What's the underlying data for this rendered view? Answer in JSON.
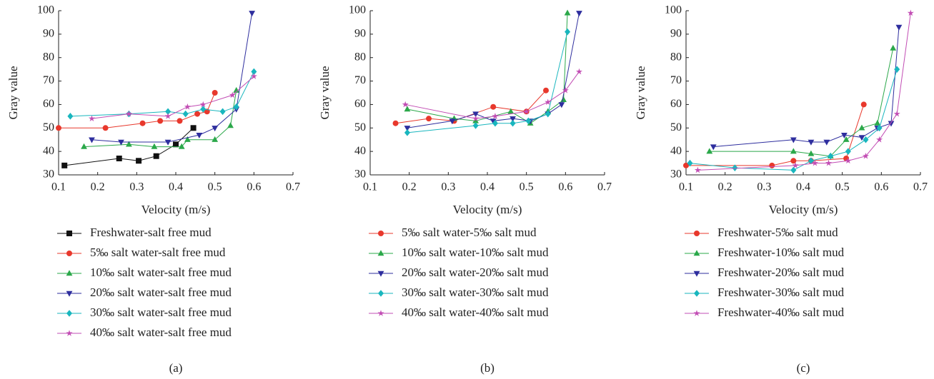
{
  "chart_data": [
    {
      "type": "line",
      "caption": "(a)",
      "x_label": "Velocity (m/s)",
      "y_label": "Gray value",
      "xlim": [
        0.1,
        0.7
      ],
      "xticks": [
        0.1,
        0.2,
        0.3,
        0.4,
        0.5,
        0.6,
        0.7
      ],
      "ylim": [
        30,
        100
      ],
      "yticks": [
        30,
        40,
        50,
        60,
        70,
        80,
        90,
        100
      ],
      "series": [
        {
          "name": "Freshwater-salt free mud",
          "color": "#111111",
          "marker": "square",
          "x": [
            0.115,
            0.255,
            0.305,
            0.35,
            0.4,
            0.445
          ],
          "values": [
            34,
            37,
            36,
            38,
            43,
            50
          ]
        },
        {
          "name": "5‰ salt water-salt free mud",
          "color": "#e8382c",
          "marker": "circle",
          "x": [
            0.1,
            0.22,
            0.315,
            0.36,
            0.41,
            0.455,
            0.48,
            0.5
          ],
          "values": [
            50,
            50,
            52,
            53,
            53,
            56,
            57,
            65
          ]
        },
        {
          "name": "10‰ salt water-salt free mud",
          "color": "#2ba84a",
          "marker": "triangle-up",
          "x": [
            0.165,
            0.28,
            0.345,
            0.415,
            0.43,
            0.5,
            0.54,
            0.555
          ],
          "values": [
            42,
            43,
            42,
            42,
            45,
            45,
            51,
            66
          ]
        },
        {
          "name": "20‰ salt water-salt free mud",
          "color": "#2e2e9e",
          "marker": "triangle-down",
          "x": [
            0.185,
            0.26,
            0.38,
            0.46,
            0.5,
            0.555,
            0.595
          ],
          "values": [
            45,
            44,
            44,
            47,
            50,
            58,
            99
          ]
        },
        {
          "name": "30‰ salt water-salt free mud",
          "color": "#19b6be",
          "marker": "diamond",
          "x": [
            0.13,
            0.28,
            0.38,
            0.425,
            0.47,
            0.52,
            0.555,
            0.6
          ],
          "values": [
            55,
            56,
            57,
            56,
            58,
            57,
            59,
            74
          ]
        },
        {
          "name": "40‰ salt water-salt free mud",
          "color": "#c24db4",
          "marker": "star",
          "x": [
            0.185,
            0.28,
            0.38,
            0.43,
            0.47,
            0.545,
            0.6
          ],
          "values": [
            54,
            56,
            55,
            59,
            60,
            64,
            72
          ]
        }
      ]
    },
    {
      "type": "line",
      "caption": "(b)",
      "x_label": "Velocity (m/s)",
      "y_label": "Gray value",
      "xlim": [
        0.1,
        0.7
      ],
      "xticks": [
        0.1,
        0.2,
        0.3,
        0.4,
        0.5,
        0.6,
        0.7
      ],
      "ylim": [
        30,
        100
      ],
      "yticks": [
        30,
        40,
        50,
        60,
        70,
        80,
        90,
        100
      ],
      "series": [
        {
          "name": "5‰ salt water-5‰ salt mud",
          "color": "#e8382c",
          "marker": "circle",
          "x": [
            0.165,
            0.25,
            0.315,
            0.415,
            0.5,
            0.55
          ],
          "values": [
            52,
            54,
            53,
            59,
            57,
            66
          ]
        },
        {
          "name": "10‰ salt water-10‰ salt mud",
          "color": "#2ba84a",
          "marker": "triangle-up",
          "x": [
            0.195,
            0.315,
            0.37,
            0.46,
            0.51,
            0.555,
            0.595,
            0.605
          ],
          "values": [
            58,
            54,
            53,
            57,
            52,
            57,
            62,
            99
          ]
        },
        {
          "name": "20‰ salt water-20‰ salt mud",
          "color": "#2e2e9e",
          "marker": "triangle-down",
          "x": [
            0.195,
            0.31,
            0.37,
            0.415,
            0.465,
            0.51,
            0.555,
            0.59,
            0.635
          ],
          "values": [
            50,
            53,
            56,
            53,
            54,
            53,
            56,
            60,
            99
          ]
        },
        {
          "name": "30‰ salt water-30‰ salt mud",
          "color": "#19b6be",
          "marker": "diamond",
          "x": [
            0.195,
            0.37,
            0.42,
            0.465,
            0.505,
            0.555,
            0.605
          ],
          "values": [
            48,
            51,
            52,
            52,
            53,
            56,
            91
          ]
        },
        {
          "name": "40‰ salt water-40‰ salt mud",
          "color": "#c24db4",
          "marker": "star",
          "x": [
            0.19,
            0.37,
            0.42,
            0.5,
            0.555,
            0.6,
            0.635
          ],
          "values": [
            60,
            54,
            55,
            57,
            61,
            66,
            74
          ]
        }
      ]
    },
    {
      "type": "line",
      "caption": "(c)",
      "x_label": "Velocity (m/s)",
      "y_label": "Gray value",
      "xlim": [
        0.1,
        0.7
      ],
      "xticks": [
        0.1,
        0.2,
        0.3,
        0.4,
        0.5,
        0.6,
        0.7
      ],
      "ylim": [
        30,
        100
      ],
      "yticks": [
        30,
        40,
        50,
        60,
        70,
        80,
        90,
        100
      ],
      "series": [
        {
          "name": "Freshwater-5‰ salt mud",
          "color": "#e8382c",
          "marker": "circle",
          "x": [
            0.1,
            0.32,
            0.375,
            0.42,
            0.51,
            0.555
          ],
          "values": [
            34,
            34,
            36,
            36,
            37,
            60
          ]
        },
        {
          "name": "Freshwater-10‰ salt mud",
          "color": "#2ba84a",
          "marker": "triangle-up",
          "x": [
            0.16,
            0.375,
            0.42,
            0.47,
            0.51,
            0.55,
            0.59,
            0.63
          ],
          "values": [
            40,
            40,
            39,
            38,
            45,
            50,
            52,
            84
          ]
        },
        {
          "name": "Freshwater-20‰ salt mud",
          "color": "#2e2e9e",
          "marker": "triangle-down",
          "x": [
            0.17,
            0.375,
            0.42,
            0.46,
            0.505,
            0.55,
            0.59,
            0.625,
            0.645
          ],
          "values": [
            42,
            45,
            44,
            44,
            47,
            46,
            50,
            52,
            93
          ]
        },
        {
          "name": "Freshwater-30‰ salt mud",
          "color": "#19b6be",
          "marker": "diamond",
          "x": [
            0.11,
            0.225,
            0.375,
            0.42,
            0.47,
            0.515,
            0.56,
            0.595,
            0.64
          ],
          "values": [
            35,
            33,
            32,
            36,
            38,
            40,
            45,
            50,
            75
          ]
        },
        {
          "name": "Freshwater-40‰ salt mud",
          "color": "#c24db4",
          "marker": "star",
          "x": [
            0.13,
            0.38,
            0.43,
            0.465,
            0.515,
            0.56,
            0.595,
            0.64,
            0.675
          ],
          "values": [
            32,
            34,
            35,
            35,
            36,
            38,
            45,
            56,
            99
          ]
        }
      ]
    }
  ]
}
